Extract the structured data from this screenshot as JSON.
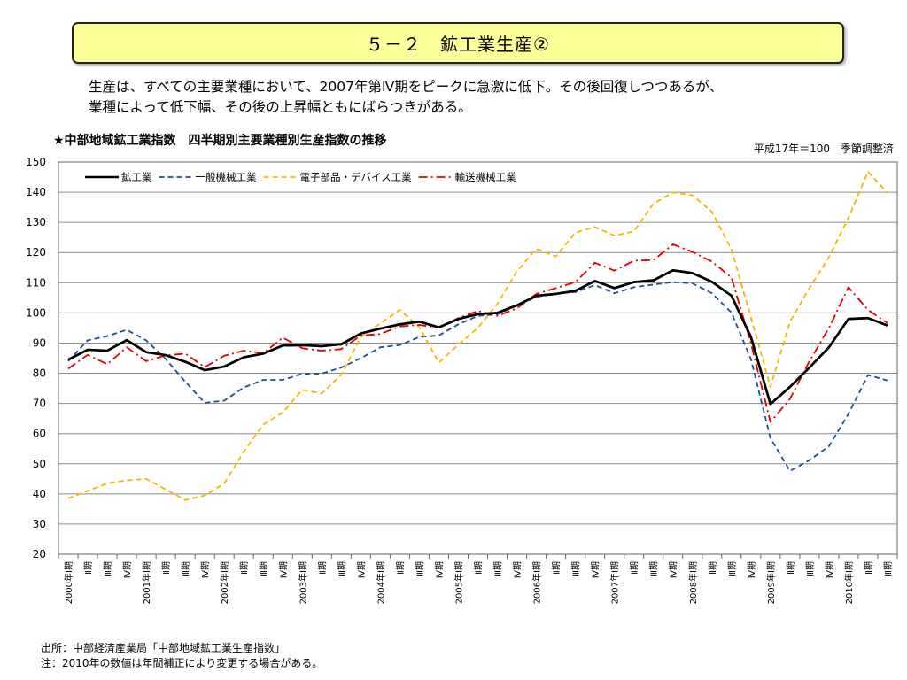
{
  "header": {
    "title": "５－２　鉱工業生産②"
  },
  "summary": {
    "line1": "生産は、すべての主要業種において、2007年第Ⅳ期をピークに急激に低下。その後回復しつつあるが、",
    "line2": "業種によって低下幅、その後の上昇幅ともにばらつきがある。"
  },
  "chart_heading": "★中部地域鉱工業指数　四半期別主要業種別生産指数の推移",
  "base_note": "平成17年＝100　季節調整済",
  "footnotes": {
    "source": "出所：中部経済産業局「中部地域鉱工業生産指数」",
    "note": "注：2010年の数値は年間補正により変更する場合がある。"
  },
  "chart_data": {
    "type": "line",
    "ylim": [
      20,
      150
    ],
    "yticks": [
      20,
      30,
      40,
      50,
      60,
      70,
      80,
      90,
      100,
      110,
      120,
      130,
      140,
      150
    ],
    "grid": true,
    "legend_position": "top-left",
    "categories": [
      "2000年Ⅰ期",
      "Ⅱ期",
      "Ⅲ期",
      "Ⅳ期",
      "2001年Ⅰ期",
      "Ⅱ期",
      "Ⅲ期",
      "Ⅳ期",
      "2002年Ⅰ期",
      "Ⅱ期",
      "Ⅲ期",
      "Ⅳ期",
      "2003年Ⅰ期",
      "Ⅱ期",
      "Ⅲ期",
      "Ⅳ期",
      "2004年Ⅰ期",
      "Ⅱ期",
      "Ⅲ期",
      "Ⅳ期",
      "2005年Ⅰ期",
      "Ⅱ期",
      "Ⅲ期",
      "Ⅳ期",
      "2006年Ⅰ期",
      "Ⅱ期",
      "Ⅲ期",
      "Ⅳ期",
      "2007年Ⅰ期",
      "Ⅱ期",
      "Ⅲ期",
      "Ⅳ期",
      "2008年Ⅰ期",
      "Ⅱ期",
      "Ⅲ期",
      "Ⅳ期",
      "2009年Ⅰ期",
      "Ⅱ期",
      "Ⅲ期",
      "Ⅳ期",
      "2010年Ⅰ期",
      "Ⅱ期",
      "Ⅲ期"
    ],
    "series": [
      {
        "name": "鉱工業",
        "color": "#000000",
        "dash": "solid",
        "values": [
          84.5,
          87.8,
          87.5,
          91,
          87,
          86,
          83.8,
          81,
          82.2,
          85.3,
          86.5,
          89.2,
          89.3,
          89,
          89.6,
          93.2,
          94.8,
          96.2,
          97.1,
          95.2,
          98,
          99.6,
          100,
          102.5,
          105.7,
          106.3,
          107.3,
          110.6,
          108.2,
          110.2,
          110.8,
          114.1,
          113.2,
          110.3,
          105.7,
          92,
          69.8,
          75.5,
          81.9,
          88.6,
          98,
          98.3,
          95.8
        ]
      },
      {
        "name": "一般機械工業",
        "color": "#1f4e8c",
        "dash": "dashed",
        "values": [
          84,
          90.9,
          92.3,
          94.4,
          90.9,
          84.7,
          77.2,
          70.2,
          70.9,
          75.3,
          77.8,
          77.8,
          79.8,
          79.9,
          81.9,
          85,
          88.6,
          89.3,
          92,
          92.5,
          96.2,
          99,
          99.5,
          102.4,
          105.3,
          106.4,
          106.9,
          109.2,
          106.5,
          108.5,
          109.4,
          110.2,
          109.8,
          106.5,
          100.1,
          84.7,
          58.5,
          47.6,
          51.2,
          55.8,
          66.5,
          79.4,
          77.6
        ]
      },
      {
        "name": "電子部品・デバイス工業",
        "color": "#f5b800",
        "dash": "dashed",
        "values": [
          38.5,
          41,
          43.5,
          44.5,
          45,
          41.5,
          38,
          39.5,
          43.5,
          54,
          63,
          67,
          74.5,
          73.3,
          79.5,
          92,
          96.5,
          101,
          95.3,
          83.5,
          89.5,
          95,
          103,
          113.8,
          121.2,
          118.7,
          126.6,
          128.5,
          125.6,
          127,
          136.2,
          139.9,
          139,
          133.5,
          121,
          98.5,
          75.5,
          97,
          108.3,
          118.5,
          131.5,
          146.8,
          139.8
        ]
      },
      {
        "name": "輸送機械工業",
        "color": "#e00000",
        "dash": "dashdot",
        "values": [
          81.5,
          86.1,
          83,
          88.6,
          84,
          85.9,
          86.5,
          82,
          85.8,
          87.5,
          86.6,
          91.8,
          88.3,
          87.5,
          88,
          92.5,
          93,
          95.5,
          96,
          95.1,
          98.3,
          100.6,
          99,
          101.5,
          106.3,
          108.2,
          110.2,
          116.6,
          114,
          117.3,
          117.5,
          122.7,
          120.2,
          117,
          111.7,
          90,
          63.8,
          71.5,
          84,
          95,
          108.5,
          101,
          96.6
        ]
      }
    ]
  }
}
